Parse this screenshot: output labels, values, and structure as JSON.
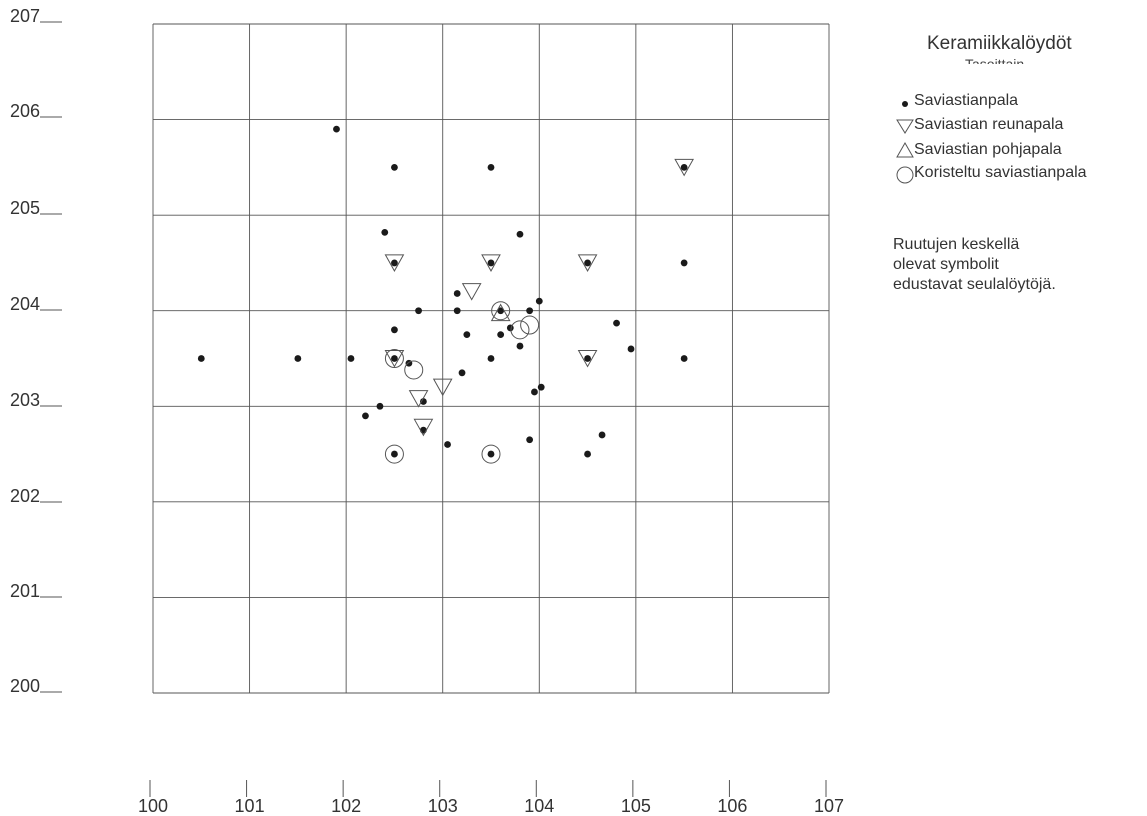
{
  "chart_data": {
    "type": "scatter",
    "title": "Keramiikkalöydöt",
    "subtitle": "Tasoittain",
    "xlim": [
      100,
      107
    ],
    "ylim": [
      200,
      207
    ],
    "x_ticks": [
      "100",
      "101",
      "102",
      "103",
      "104",
      "105",
      "106",
      "107"
    ],
    "y_ticks": [
      "200",
      "201",
      "202",
      "203",
      "204",
      "205",
      "206",
      "207"
    ],
    "grid": true,
    "legend_position": "top-right",
    "series": [
      {
        "name": "Saviastianpala",
        "marker": "dot",
        "points": [
          [
            100.5,
            203.5
          ],
          [
            101.5,
            203.5
          ],
          [
            101.9,
            205.9
          ],
          [
            102.05,
            203.5
          ],
          [
            102.4,
            204.82
          ],
          [
            102.5,
            205.5
          ],
          [
            102.5,
            204.5
          ],
          [
            102.5,
            203.8
          ],
          [
            102.5,
            203.5
          ],
          [
            102.65,
            203.45
          ],
          [
            102.2,
            202.9
          ],
          [
            102.35,
            203.0
          ],
          [
            102.75,
            204.0
          ],
          [
            102.8,
            203.05
          ],
          [
            102.8,
            202.75
          ],
          [
            102.5,
            202.5
          ],
          [
            103.15,
            204.18
          ],
          [
            103.15,
            204.0
          ],
          [
            103.25,
            203.75
          ],
          [
            103.2,
            203.35
          ],
          [
            103.05,
            202.6
          ],
          [
            103.5,
            205.5
          ],
          [
            103.5,
            204.5
          ],
          [
            103.5,
            203.5
          ],
          [
            103.5,
            202.5
          ],
          [
            103.6,
            204.0
          ],
          [
            103.6,
            203.75
          ],
          [
            103.7,
            203.82
          ],
          [
            103.8,
            204.8
          ],
          [
            103.8,
            203.63
          ],
          [
            103.9,
            204.0
          ],
          [
            103.95,
            203.15
          ],
          [
            103.9,
            202.65
          ],
          [
            104.0,
            204.1
          ],
          [
            104.02,
            203.2
          ],
          [
            104.5,
            204.5
          ],
          [
            104.5,
            203.5
          ],
          [
            104.5,
            202.5
          ],
          [
            104.65,
            202.7
          ],
          [
            104.8,
            203.87
          ],
          [
            104.95,
            203.6
          ],
          [
            105.5,
            205.5
          ],
          [
            105.5,
            204.5
          ],
          [
            105.5,
            203.5
          ]
        ]
      },
      {
        "name": "Saviastian reunapala",
        "marker": "triangle-down",
        "points": [
          [
            102.5,
            204.5
          ],
          [
            103.5,
            204.5
          ],
          [
            104.5,
            204.5
          ],
          [
            105.5,
            205.5
          ],
          [
            104.5,
            203.5
          ],
          [
            102.5,
            203.5
          ],
          [
            103.3,
            204.2
          ],
          [
            103.0,
            203.2
          ],
          [
            102.75,
            203.08
          ],
          [
            102.8,
            202.78
          ]
        ]
      },
      {
        "name": "Saviastian pohjapala",
        "marker": "triangle-up",
        "points": [
          [
            103.6,
            203.97
          ]
        ]
      },
      {
        "name": "Koristeltu saviastianpala",
        "marker": "circle",
        "points": [
          [
            102.5,
            203.5
          ],
          [
            102.7,
            203.38
          ],
          [
            102.5,
            202.5
          ],
          [
            103.5,
            202.5
          ],
          [
            103.6,
            204.0
          ],
          [
            103.8,
            203.8
          ],
          [
            103.9,
            203.85
          ]
        ]
      }
    ]
  },
  "legend": {
    "title": "Keramiikkalöydöt",
    "subtitle": "Tasoittain",
    "items": [
      {
        "label": "Saviastianpala",
        "marker": "dot"
      },
      {
        "label": "Saviastian reunapala",
        "marker": "triangle-down"
      },
      {
        "label": "Saviastian pohjapala",
        "marker": "triangle-up"
      },
      {
        "label": "Koristeltu saviastianpala",
        "marker": "circle"
      }
    ]
  },
  "note": {
    "lines": [
      "Ruutujen keskellä",
      "olevat symbolit",
      "edustavat seulalöytöjä."
    ]
  }
}
